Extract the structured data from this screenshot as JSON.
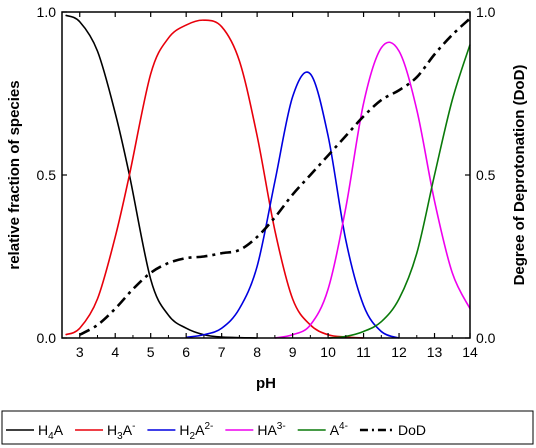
{
  "chart_data": {
    "type": "line",
    "xlabel": "pH",
    "ylabel_left": "relative fraction of species",
    "ylabel_right": "Degree of Deprotonation (DoD)",
    "xlim": [
      2.5,
      14
    ],
    "ylim_left": [
      0,
      1
    ],
    "ylim_right": [
      0,
      1
    ],
    "x_ticks": [
      3,
      4,
      5,
      6,
      7,
      8,
      9,
      10,
      11,
      12,
      13,
      14
    ],
    "y_ticks_left": [
      "0.0",
      "0.5",
      "1.0"
    ],
    "y_ticks_right": [
      "0.0",
      "0.5",
      "1.0"
    ],
    "grid": false,
    "legend_position": "bottom",
    "series": [
      {
        "name": "H4A",
        "legend_base": "H",
        "legend_sub": "4",
        "legend_rest": "A",
        "legend_sup": "",
        "color": "#000000",
        "style": "solid",
        "x": [
          2.6,
          3.0,
          3.5,
          4.0,
          4.4,
          5.0,
          5.5,
          6.0,
          6.5,
          7.0,
          8.0
        ],
        "y": [
          0.99,
          0.97,
          0.88,
          0.69,
          0.5,
          0.18,
          0.07,
          0.03,
          0.01,
          0.003,
          0.0
        ]
      },
      {
        "name": "H3A-",
        "legend_base": "H",
        "legend_sub": "3",
        "legend_rest": "A",
        "legend_sup": "-",
        "color": "#e8000b",
        "style": "solid",
        "x": [
          2.6,
          3.0,
          3.5,
          4.0,
          4.4,
          5.0,
          5.5,
          6.0,
          6.5,
          7.0,
          7.5,
          8.0,
          8.5,
          9.0,
          9.5,
          10.0,
          10.5,
          11.0
        ],
        "y": [
          0.01,
          0.03,
          0.12,
          0.31,
          0.5,
          0.81,
          0.92,
          0.96,
          0.975,
          0.955,
          0.85,
          0.62,
          0.33,
          0.12,
          0.04,
          0.01,
          0.003,
          0.0
        ]
      },
      {
        "name": "H2A2-",
        "legend_base": "H",
        "legend_sub": "2",
        "legend_rest": "A",
        "legend_sup": "2-",
        "color": "#0000e0",
        "style": "solid",
        "x": [
          6.0,
          6.5,
          7.0,
          7.5,
          8.0,
          8.5,
          9.0,
          9.5,
          10.0,
          10.5,
          11.0,
          11.5,
          12.0
        ],
        "y": [
          0.002,
          0.01,
          0.03,
          0.09,
          0.22,
          0.48,
          0.74,
          0.81,
          0.62,
          0.3,
          0.1,
          0.02,
          0.0
        ]
      },
      {
        "name": "HA3-",
        "legend_base": "HA",
        "legend_sub": "",
        "legend_rest": "",
        "legend_sup": "3-",
        "color": "#ee00ee",
        "style": "solid",
        "x": [
          8.5,
          9.0,
          9.5,
          10.0,
          10.5,
          11.0,
          11.5,
          12.0,
          12.5,
          13.0,
          13.5,
          14.0
        ],
        "y": [
          0.0,
          0.01,
          0.04,
          0.15,
          0.4,
          0.72,
          0.89,
          0.88,
          0.7,
          0.42,
          0.2,
          0.09
        ]
      },
      {
        "name": "A4-",
        "legend_base": "A",
        "legend_sub": "",
        "legend_rest": "",
        "legend_sup": "4-",
        "color": "#0a7a0a",
        "style": "solid",
        "x": [
          10.0,
          10.5,
          11.0,
          11.5,
          12.0,
          12.5,
          13.0,
          13.5,
          14.0
        ],
        "y": [
          0.0,
          0.005,
          0.02,
          0.05,
          0.12,
          0.26,
          0.5,
          0.73,
          0.9
        ]
      },
      {
        "name": "DoD",
        "legend_base": "DoD",
        "legend_sub": "",
        "legend_rest": "",
        "legend_sup": "",
        "color": "#000000",
        "style": "dashdot",
        "x": [
          3.0,
          3.5,
          4.0,
          4.5,
          5.0,
          5.5,
          6.0,
          6.5,
          7.0,
          7.5,
          8.0,
          8.5,
          9.0,
          9.5,
          10.0,
          10.5,
          11.0,
          11.5,
          12.0,
          12.5,
          13.0,
          13.5,
          14.0
        ],
        "y": [
          0.01,
          0.04,
          0.09,
          0.15,
          0.2,
          0.23,
          0.245,
          0.25,
          0.26,
          0.27,
          0.31,
          0.37,
          0.44,
          0.5,
          0.56,
          0.62,
          0.68,
          0.73,
          0.76,
          0.8,
          0.87,
          0.93,
          0.98
        ]
      }
    ]
  }
}
